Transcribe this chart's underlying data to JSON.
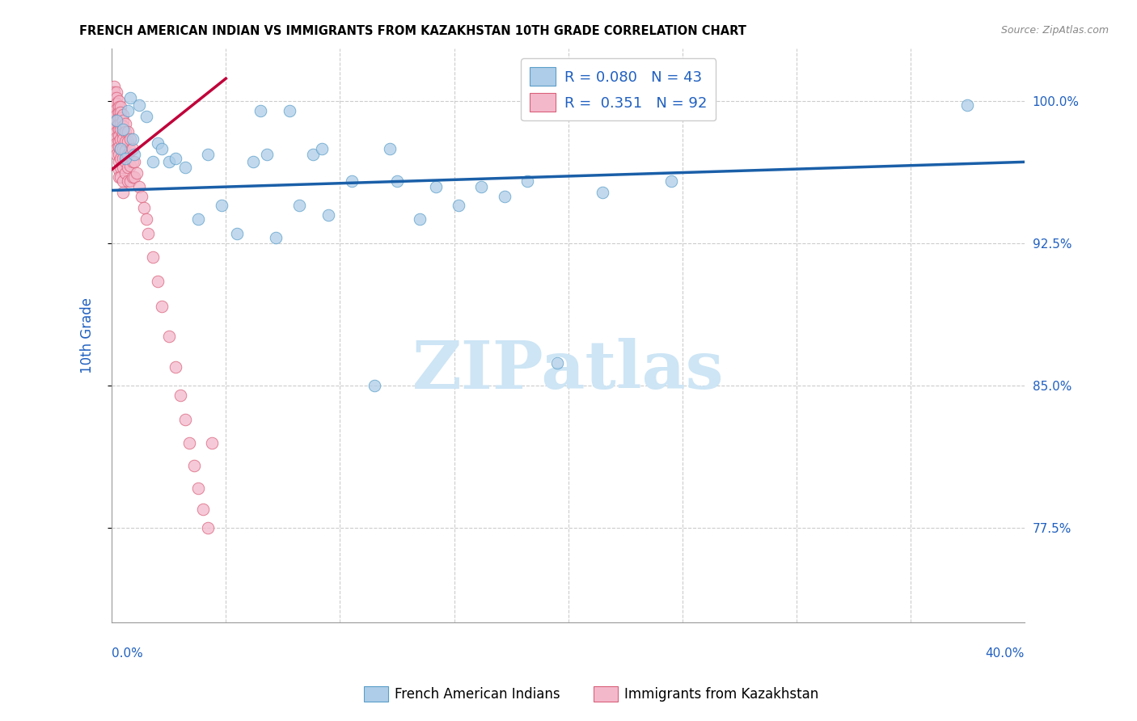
{
  "title": "FRENCH AMERICAN INDIAN VS IMMIGRANTS FROM KAZAKHSTAN 10TH GRADE CORRELATION CHART",
  "source": "Source: ZipAtlas.com",
  "ylabel": "10th Grade",
  "y_ticks": [
    0.775,
    0.85,
    0.925,
    1.0
  ],
  "y_tick_labels": [
    "77.5%",
    "85.0%",
    "92.5%",
    "100.0%"
  ],
  "legend_label1": "French American Indians",
  "legend_label2": "Immigrants from Kazakhstan",
  "blue_color": "#aecde8",
  "pink_color": "#f4b8cb",
  "blue_edge_color": "#5a9ec9",
  "pink_edge_color": "#d9607a",
  "blue_line_color": "#1a5fa8",
  "pink_line_color": "#c0003a",
  "x_lim": [
    0.0,
    0.4
  ],
  "y_lim": [
    0.725,
    1.028
  ],
  "blue_trend_x": [
    0.0,
    0.4
  ],
  "blue_trend_y": [
    0.953,
    0.968
  ],
  "pink_trend_x": [
    0.0,
    0.05
  ],
  "pink_trend_y": [
    0.964,
    1.012
  ],
  "title_fontsize": 10.5,
  "accent_color": "#2060c0",
  "grid_color": "#cccccc",
  "blue_scatter_x": [
    0.002,
    0.004,
    0.005,
    0.006,
    0.007,
    0.008,
    0.009,
    0.01,
    0.012,
    0.015,
    0.018,
    0.02,
    0.022,
    0.025,
    0.028,
    0.032,
    0.038,
    0.042,
    0.048,
    0.055,
    0.062,
    0.065,
    0.068,
    0.072,
    0.078,
    0.082,
    0.088,
    0.092,
    0.095,
    0.105,
    0.115,
    0.122,
    0.125,
    0.135,
    0.142,
    0.152,
    0.162,
    0.172,
    0.182,
    0.195,
    0.215,
    0.245,
    0.375
  ],
  "blue_scatter_y": [
    0.99,
    0.975,
    0.985,
    0.97,
    0.995,
    1.002,
    0.98,
    0.972,
    0.998,
    0.992,
    0.968,
    0.978,
    0.975,
    0.968,
    0.97,
    0.965,
    0.938,
    0.972,
    0.945,
    0.93,
    0.968,
    0.995,
    0.972,
    0.928,
    0.995,
    0.945,
    0.972,
    0.975,
    0.94,
    0.958,
    0.85,
    0.975,
    0.958,
    0.938,
    0.955,
    0.945,
    0.955,
    0.95,
    0.958,
    0.862,
    0.952,
    0.958,
    0.998
  ],
  "pink_scatter_x": [
    0.001,
    0.001,
    0.001,
    0.001,
    0.001,
    0.001,
    0.001,
    0.001,
    0.002,
    0.002,
    0.002,
    0.002,
    0.002,
    0.002,
    0.002,
    0.002,
    0.002,
    0.002,
    0.002,
    0.002,
    0.003,
    0.003,
    0.003,
    0.003,
    0.003,
    0.003,
    0.003,
    0.003,
    0.003,
    0.003,
    0.003,
    0.003,
    0.003,
    0.004,
    0.004,
    0.004,
    0.004,
    0.004,
    0.004,
    0.004,
    0.004,
    0.004,
    0.004,
    0.005,
    0.005,
    0.005,
    0.005,
    0.005,
    0.005,
    0.005,
    0.005,
    0.005,
    0.005,
    0.006,
    0.006,
    0.006,
    0.006,
    0.006,
    0.006,
    0.007,
    0.007,
    0.007,
    0.007,
    0.007,
    0.008,
    0.008,
    0.008,
    0.008,
    0.009,
    0.009,
    0.009,
    0.01,
    0.01,
    0.011,
    0.012,
    0.013,
    0.014,
    0.015,
    0.016,
    0.018,
    0.02,
    0.022,
    0.025,
    0.028,
    0.03,
    0.032,
    0.034,
    0.036,
    0.038,
    0.04,
    0.042,
    0.044
  ],
  "pink_scatter_y": [
    1.008,
    1.005,
    1.002,
    0.999,
    0.996,
    0.993,
    0.99,
    0.985,
    1.005,
    1.002,
    0.999,
    0.996,
    0.993,
    0.99,
    0.987,
    0.984,
    0.981,
    0.978,
    0.975,
    0.972,
    1.0,
    0.997,
    0.994,
    0.991,
    0.988,
    0.985,
    0.982,
    0.979,
    0.976,
    0.972,
    0.968,
    0.964,
    0.96,
    0.997,
    0.994,
    0.991,
    0.988,
    0.985,
    0.98,
    0.975,
    0.97,
    0.965,
    0.96,
    0.993,
    0.99,
    0.987,
    0.983,
    0.98,
    0.975,
    0.97,
    0.965,
    0.958,
    0.952,
    0.988,
    0.984,
    0.979,
    0.974,
    0.968,
    0.962,
    0.984,
    0.979,
    0.972,
    0.965,
    0.958,
    0.98,
    0.974,
    0.966,
    0.958,
    0.975,
    0.968,
    0.96,
    0.968,
    0.96,
    0.962,
    0.955,
    0.95,
    0.944,
    0.938,
    0.93,
    0.918,
    0.905,
    0.892,
    0.876,
    0.86,
    0.845,
    0.832,
    0.82,
    0.808,
    0.796,
    0.785,
    0.775,
    0.82
  ]
}
